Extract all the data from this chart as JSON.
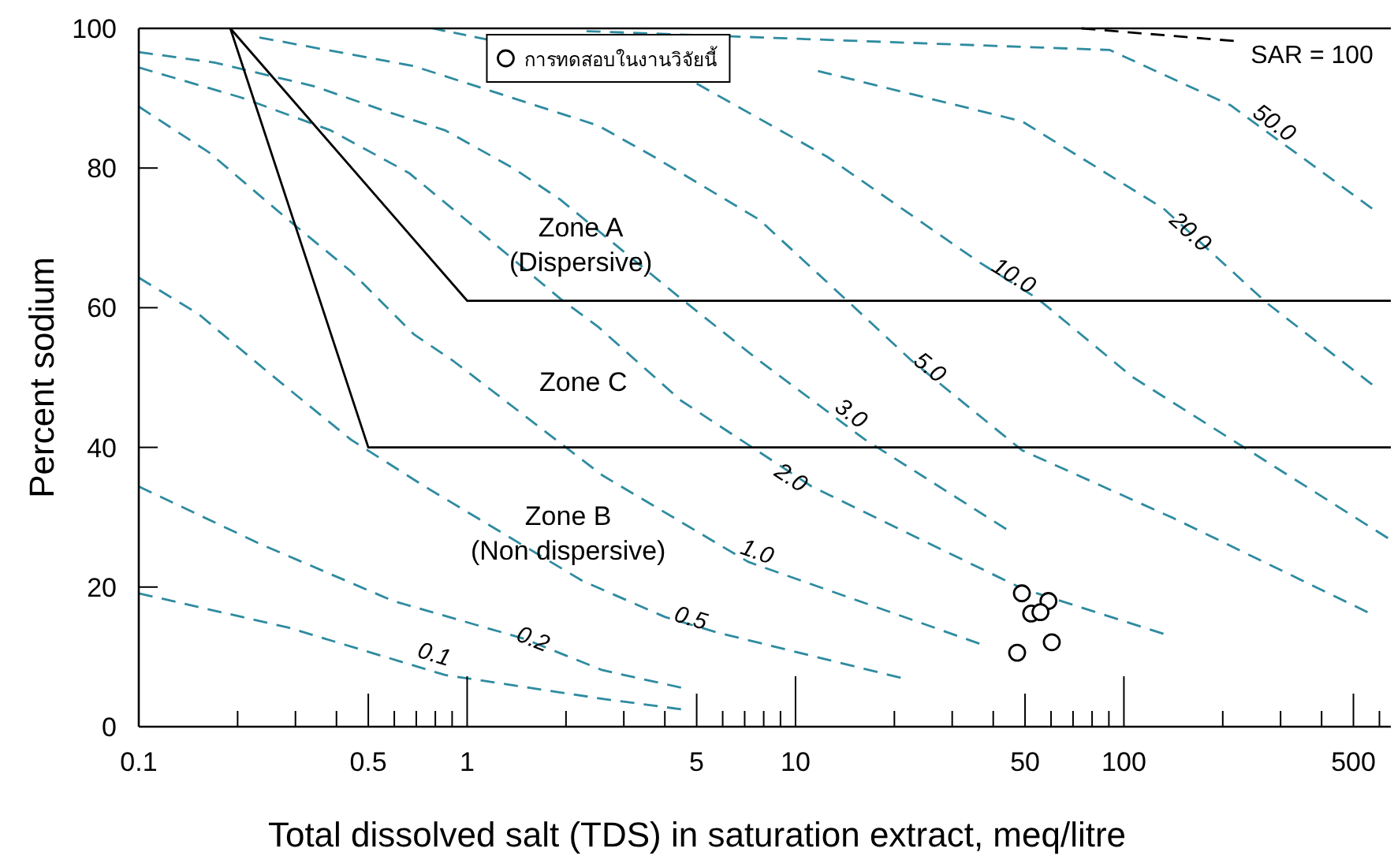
{
  "chart_data": {
    "type": "line",
    "xlabel": "Total dissolved salt (TDS) in saturation extract, meq/litre",
    "ylabel": "Percent sodium",
    "log": "x",
    "xlim": [
      0.1,
      650
    ],
    "ylim": [
      0,
      100
    ],
    "xticks": [
      0.1,
      {
        "value": 0.2,
        "label": null
      },
      {
        "value": 0.3,
        "label": null
      },
      {
        "value": 0.4,
        "label": null
      },
      0.5,
      {
        "value": 0.6,
        "label": null
      },
      {
        "value": 0.7,
        "label": null
      },
      {
        "value": 0.8,
        "label": null
      },
      {
        "value": 0.9,
        "label": null
      },
      1,
      {
        "value": 2,
        "label": null
      },
      {
        "value": 3,
        "label": null
      },
      {
        "value": 4,
        "label": null
      },
      5,
      {
        "value": 6,
        "label": null
      },
      {
        "value": 7,
        "label": null
      },
      {
        "value": 8,
        "label": null
      },
      {
        "value": 9,
        "label": null
      },
      10,
      {
        "value": 20,
        "label": null
      },
      {
        "value": 30,
        "label": null
      },
      {
        "value": 40,
        "label": null
      },
      50,
      {
        "value": 60,
        "label": null
      },
      {
        "value": 70,
        "label": null
      },
      {
        "value": 80,
        "label": null
      },
      {
        "value": 90,
        "label": null
      },
      100,
      {
        "value": 200,
        "label": null
      },
      {
        "value": 300,
        "label": null
      },
      {
        "value": 400,
        "label": null
      },
      500,
      {
        "value": 600,
        "label": null
      }
    ],
    "yticks": [
      0,
      20,
      40,
      60,
      80,
      100
    ],
    "legend": "top left",
    "series": [
      {
        "name": "0.1",
        "color": "#2e8ba0",
        "line_style": "dashed",
        "x": [
          0.1,
          0.285,
          0.857,
          2.58,
          4.48
        ],
        "values": [
          19.1,
          14.2,
          7.4,
          4.0,
          2.5
        ]
      },
      {
        "name": "0.2",
        "color": "#2e8ba0",
        "line_style": "dashed",
        "x": [
          0.1,
          0.236,
          0.596,
          1.49,
          2.58,
          4.48
        ],
        "values": [
          34.4,
          26.1,
          18.0,
          12.6,
          8.1,
          5.6
        ]
      },
      {
        "name": "0.5",
        "color": "#2e8ba0",
        "line_style": "dashed",
        "x": [
          0.1,
          0.152,
          0.247,
          0.443,
          0.743,
          2.24,
          4.01,
          5.77,
          20.9
        ],
        "values": [
          64.3,
          59.1,
          50.8,
          41.1,
          34.4,
          20.9,
          15.7,
          13.5,
          7.0
        ]
      },
      {
        "name": "1.0",
        "color": "#2e8ba0",
        "line_style": "dashed",
        "x": [
          0.1,
          0.164,
          0.285,
          0.443,
          0.688,
          0.906,
          2.58,
          7.18,
          36.3
        ],
        "values": [
          88.8,
          82.2,
          72.6,
          65.2,
          56.2,
          52.4,
          36.0,
          23.6,
          11.9
        ]
      },
      {
        "name": "2.0",
        "color": "#2e8ba0",
        "line_style": "dashed",
        "x": [
          0.1,
          0.205,
          0.384,
          0.665,
          0.99,
          1.92,
          2.5,
          4.48,
          11.2,
          48.9,
          132
        ],
        "values": [
          94.4,
          90.1,
          85.4,
          79.3,
          72.6,
          61.3,
          57.3,
          46.7,
          34.4,
          19.8,
          13.3
        ]
      },
      {
        "name": "3.0",
        "color": "#2e8ba0",
        "line_style": "dashed",
        "x": [
          0.1,
          0.17,
          0.343,
          0.552,
          0.857,
          1.38,
          1.92,
          4.48,
          7.76,
          16.3,
          43.8
        ],
        "values": [
          96.6,
          95.1,
          91.7,
          88.3,
          85.4,
          80.0,
          75.5,
          61.3,
          52.4,
          41.1,
          28.3
        ]
      },
      {
        "name": "5.0",
        "color": "#2e8ba0",
        "line_style": "dashed",
        "x": [
          0.233,
          0.688,
          2.5,
          3.71,
          7.76,
          14.6,
          22.6,
          48.9,
          141,
          552
        ],
        "values": [
          98.7,
          94.6,
          86.1,
          81.6,
          72.6,
          60.7,
          52.4,
          39.6,
          29.9,
          16.4
        ]
      },
      {
        "name": "10.0",
        "color": "#2e8ba0",
        "line_style": "dashed",
        "x": [
          5.0,
          12.5,
          36.3,
          54.6,
          106,
          637
        ],
        "values": [
          92.1,
          81.6,
          66.5,
          61.3,
          50.1,
          27.0
        ]
      },
      {
        "name": "20.0",
        "color": "#2e8ba0",
        "line_style": "dashed",
        "x": [
          11.7,
          48.9,
          132,
          272,
          570
        ],
        "values": [
          93.9,
          86.7,
          74.2,
          60.7,
          49.0
        ]
      },
      {
        "name": "50.0",
        "color": "#2e8ba0",
        "line_style": "dashed",
        "x": [
          2.31,
          90.6,
          211,
          570
        ],
        "values": [
          99.6,
          96.9,
          89.0,
          74.2
        ]
      },
      {
        "name": "SAR = 100",
        "color": "#000000",
        "line_style": "dashed",
        "x": [
          74.3,
          216
        ],
        "values": [
          100,
          98.2
        ]
      },
      {
        "color": "#000000",
        "line_style": "solid",
        "x": [
          0.19,
          1.0,
          650
        ],
        "values": [
          100,
          61,
          61
        ]
      },
      {
        "color": "#000000",
        "line_style": "solid",
        "x": [
          0.19,
          0.5,
          650
        ],
        "values": [
          100,
          40,
          40
        ]
      },
      {
        "color": "#2e8ba0",
        "line_style": "dashed",
        "x": [
          0.785,
          1.15
        ],
        "values": [
          100,
          98.4
        ]
      },
      {
        "type": "scatter",
        "name": "การทดสอบในงานวิจัยนี้",
        "color": "#000000",
        "marker": "circle",
        "x": [
          48.9,
          58.9,
          52.2,
          55.7,
          60.3,
          47.3
        ],
        "values": [
          19.1,
          18.0,
          16.2,
          16.4,
          12.1,
          10.6
        ]
      }
    ],
    "annotations": [
      "Zone A\n(Dispersive)",
      "Zone C",
      "Zone B\n(Non dispersive)"
    ]
  }
}
